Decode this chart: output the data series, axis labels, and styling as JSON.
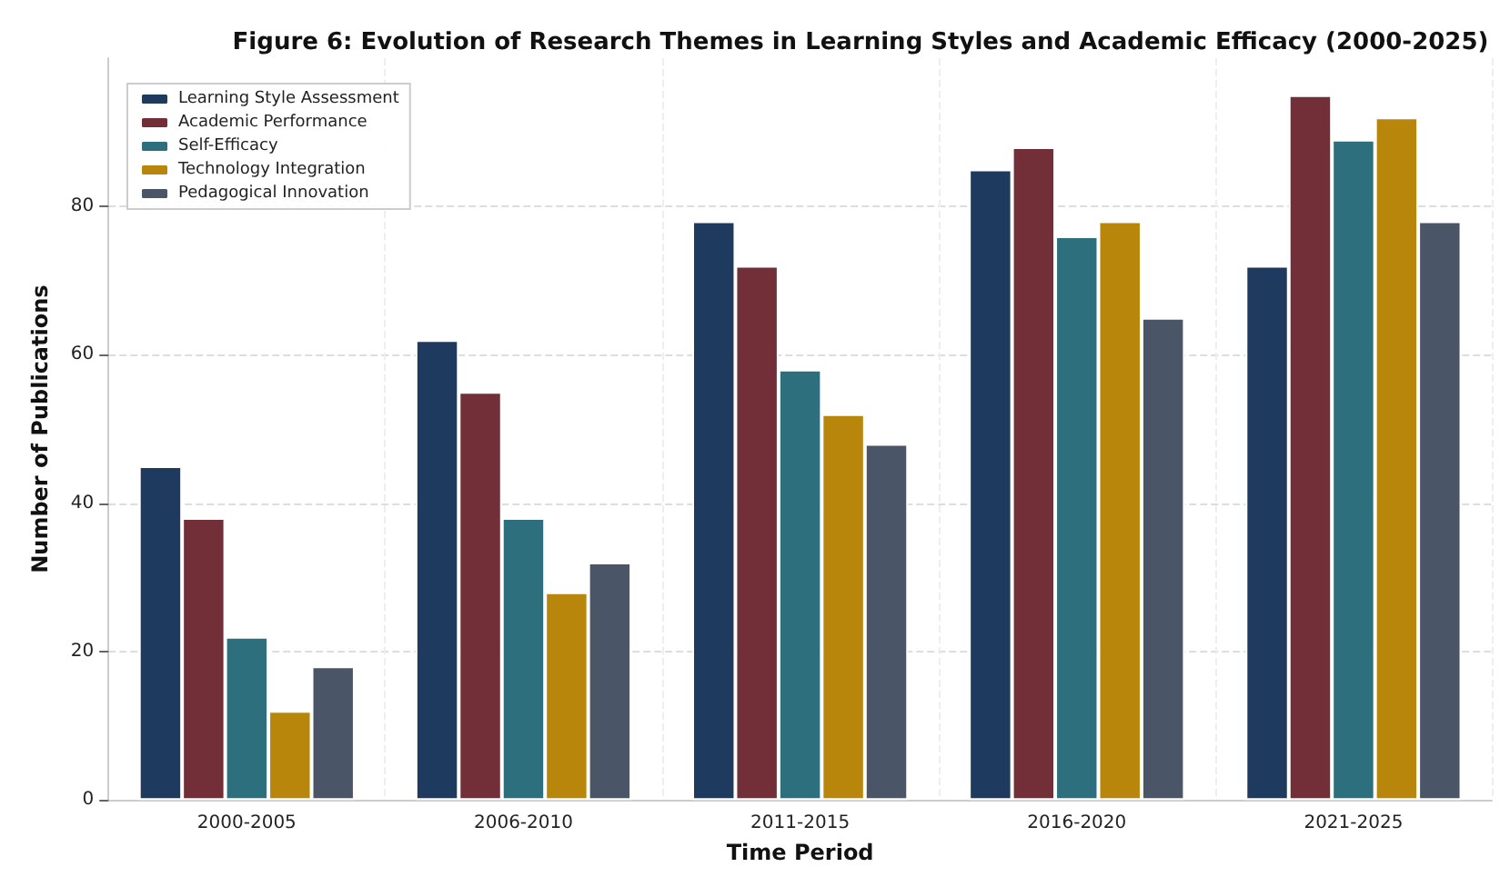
{
  "chart_data": {
    "type": "bar",
    "title": "Figure 6: Evolution of Research Themes in Learning Styles and Academic Efficacy (2000-2025)",
    "xlabel": "Time Period",
    "ylabel": "Number of Publications",
    "categories": [
      "2000-2005",
      "2006-2010",
      "2011-2015",
      "2016-2020",
      "2021-2025"
    ],
    "series": [
      {
        "name": "Learning Style Assessment",
        "color": "#1f3a5f",
        "values": [
          45,
          62,
          78,
          85,
          72
        ]
      },
      {
        "name": "Academic Performance",
        "color": "#722f37",
        "values": [
          38,
          55,
          72,
          88,
          95
        ]
      },
      {
        "name": "Self-Efficacy",
        "color": "#2e6f7e",
        "values": [
          22,
          38,
          58,
          76,
          89
        ]
      },
      {
        "name": "Technology Integration",
        "color": "#b8860b",
        "values": [
          12,
          28,
          52,
          78,
          92
        ]
      },
      {
        "name": "Pedagogical Innovation",
        "color": "#4a5568",
        "values": [
          18,
          32,
          48,
          65,
          78
        ]
      }
    ],
    "ylim": [
      0,
      100
    ],
    "yticks": [
      0,
      20,
      40,
      60,
      80
    ],
    "grid": true,
    "legend": "top left"
  }
}
